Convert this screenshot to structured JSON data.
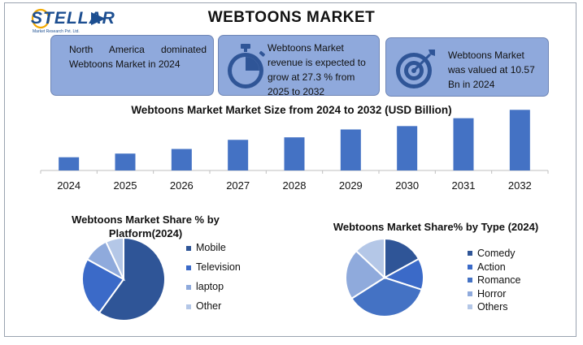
{
  "header": {
    "logo_text": "STELLAR",
    "logo_subtext": "Market Research Pvt. Ltd.",
    "title": "WEBTOONS MARKET"
  },
  "cards": [
    {
      "text": "North America dominated Webtoons Market in 2024",
      "icon": "map-icon"
    },
    {
      "text": "Webtoons Market revenue is expected to grow at 27.3 % from 2025 to 2032",
      "icon": "stopwatch-icon"
    },
    {
      "text": "Webtoons Market was valued at 10.57 Bn in 2024",
      "icon": "target-icon"
    }
  ],
  "colors": {
    "bar": "#4472c4",
    "card_bg": "#8fa9dc",
    "pie_dark": "#2f5597",
    "pie_mid": "#3b6ac8",
    "pie_light": "#8faadc",
    "pie_pale": "#b4c7e7"
  },
  "chart_data": [
    {
      "type": "bar",
      "title": "Webtoons Market Market Size from 2024 to 2032 (USD Billion)",
      "categories": [
        "2024",
        "2025",
        "2026",
        "2027",
        "2028",
        "2029",
        "2030",
        "2031",
        "2032"
      ],
      "values": [
        10.57,
        13.5,
        17.2,
        24.5,
        26.5,
        32.8,
        35.5,
        41.8,
        48.5
      ],
      "ylim": [
        0,
        50
      ],
      "grid": false,
      "legend": "none"
    },
    {
      "type": "pie",
      "title": "Webtoons Market Share % by Platform(2024)",
      "categories": [
        "Mobile",
        "Television",
        "laptop",
        "Other"
      ],
      "values": [
        60,
        23,
        10,
        7
      ],
      "colors": [
        "#2f5597",
        "#3b6ac8",
        "#8faadc",
        "#b4c7e7"
      ],
      "legend": "right"
    },
    {
      "type": "pie",
      "title": "Webtoons Market Share% by Type (2024)",
      "categories": [
        "Comedy",
        "Action",
        "Romance",
        "Horror",
        "Others"
      ],
      "values": [
        17,
        13,
        36,
        21,
        13
      ],
      "colors": [
        "#2f5597",
        "#3b6ac8",
        "#4472c4",
        "#8faadc",
        "#b4c7e7"
      ],
      "legend": "right"
    }
  ]
}
